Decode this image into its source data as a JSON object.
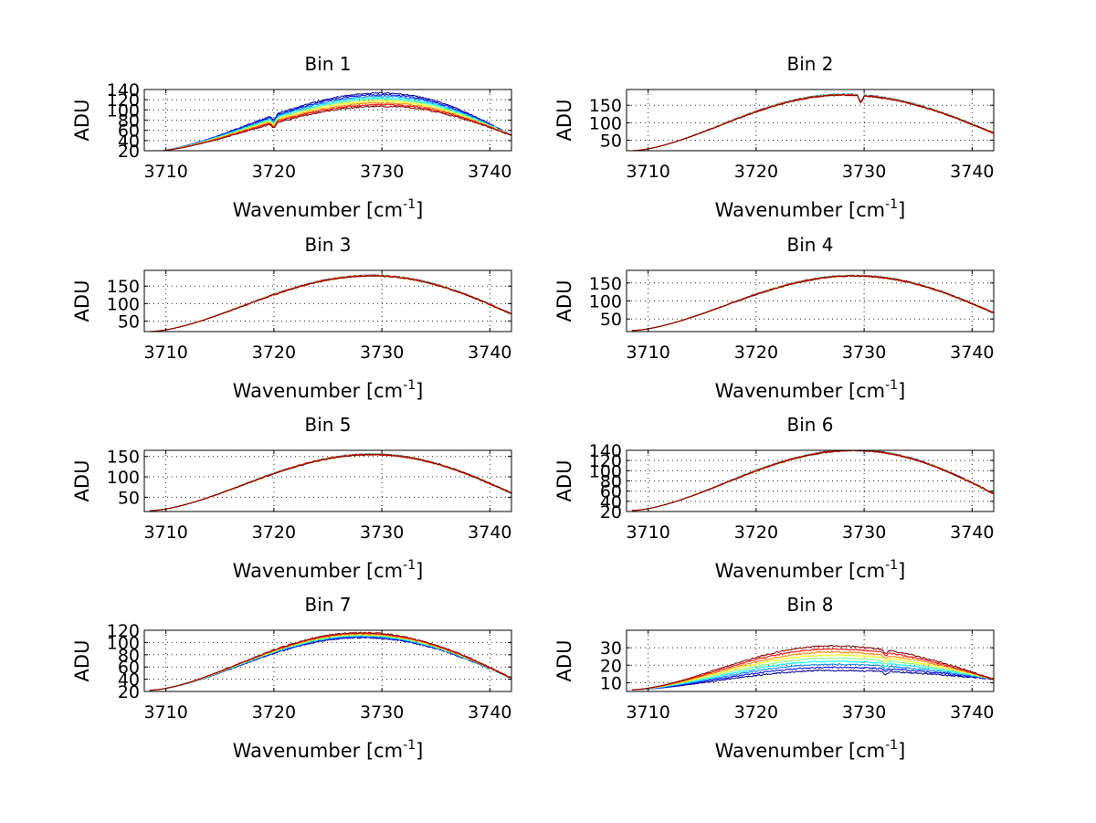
{
  "colors": {
    "series_palette": [
      "#00008f",
      "#0000ff",
      "#0080ff",
      "#00ffff",
      "#80ff80",
      "#ffff00",
      "#ff8000",
      "#ff0000",
      "#800000"
    ],
    "axes": "#000000",
    "background": "#ffffff"
  },
  "chart_data": [
    {
      "type": "line",
      "title": "Bin 1",
      "xlabel": "Wavenumber [cm",
      "xlabel_sup": "-1",
      "xlabel_suffix": "]",
      "ylabel": "ADU",
      "xlim": [
        3708,
        3742
      ],
      "ylim": [
        20,
        140
      ],
      "xticks": [
        3710,
        3720,
        3730,
        3740
      ],
      "yticks": [
        20,
        40,
        60,
        80,
        100,
        120,
        140
      ],
      "grid": true,
      "series_count": 9,
      "profile": {
        "base": 120,
        "spread": 26,
        "edge_left": 18,
        "edge_right": 50,
        "peak_x": 3730,
        "dip_x": 3720,
        "dip_depth": 10
      }
    },
    {
      "type": "line",
      "title": "Bin 2",
      "xlabel": "Wavenumber [cm",
      "xlabel_sup": "-1",
      "xlabel_suffix": "]",
      "ylabel": "ADU",
      "xlim": [
        3708,
        3742
      ],
      "ylim": [
        20,
        195
      ],
      "xticks": [
        3710,
        3720,
        3730,
        3740
      ],
      "yticks": [
        50,
        100,
        150
      ],
      "grid": true,
      "series_count": 9,
      "profile": {
        "base": 180,
        "spread": 2,
        "edge_left": 20,
        "edge_right": 70,
        "peak_x": 3728,
        "dip_x": 3729.7,
        "dip_depth": 20
      }
    },
    {
      "type": "line",
      "title": "Bin 3",
      "xlabel": "Wavenumber [cm",
      "xlabel_sup": "-1",
      "xlabel_suffix": "]",
      "ylabel": "ADU",
      "xlim": [
        3708,
        3742
      ],
      "ylim": [
        20,
        195
      ],
      "xticks": [
        3710,
        3720,
        3730,
        3740
      ],
      "yticks": [
        50,
        100,
        150
      ],
      "grid": true,
      "series_count": 9,
      "profile": {
        "base": 180,
        "spread": 1,
        "edge_left": 20,
        "edge_right": 70,
        "peak_x": 3729,
        "dip_x": 0,
        "dip_depth": 0
      }
    },
    {
      "type": "line",
      "title": "Bin 4",
      "xlabel": "Wavenumber [cm",
      "xlabel_sup": "-1",
      "xlabel_suffix": "]",
      "ylabel": "ADU",
      "xlim": [
        3708,
        3742
      ],
      "ylim": [
        15,
        185
      ],
      "xticks": [
        3710,
        3720,
        3730,
        3740
      ],
      "yticks": [
        50,
        100,
        150
      ],
      "grid": true,
      "series_count": 9,
      "profile": {
        "base": 170,
        "spread": 1,
        "edge_left": 18,
        "edge_right": 67,
        "peak_x": 3729,
        "dip_x": 0,
        "dip_depth": 0
      }
    },
    {
      "type": "line",
      "title": "Bin 5",
      "xlabel": "Wavenumber [cm",
      "xlabel_sup": "-1",
      "xlabel_suffix": "]",
      "ylabel": "ADU",
      "xlim": [
        3708,
        3742
      ],
      "ylim": [
        15,
        165
      ],
      "xticks": [
        3710,
        3720,
        3730,
        3740
      ],
      "yticks": [
        50,
        100,
        150
      ],
      "grid": true,
      "series_count": 9,
      "profile": {
        "base": 155,
        "spread": 1,
        "edge_left": 17,
        "edge_right": 60,
        "peak_x": 3729,
        "dip_x": 0,
        "dip_depth": 0
      }
    },
    {
      "type": "line",
      "title": "Bin 6",
      "xlabel": "Wavenumber [cm",
      "xlabel_sup": "-1",
      "xlabel_suffix": "]",
      "ylabel": "ADU",
      "xlim": [
        3708,
        3742
      ],
      "ylim": [
        20,
        140
      ],
      "xticks": [
        3710,
        3720,
        3730,
        3740
      ],
      "yticks": [
        20,
        40,
        60,
        80,
        100,
        120,
        140
      ],
      "grid": true,
      "series_count": 9,
      "profile": {
        "base": 140,
        "spread": 1,
        "edge_left": 22,
        "edge_right": 55,
        "peak_x": 3729,
        "dip_x": 0,
        "dip_depth": 0
      }
    },
    {
      "type": "line",
      "title": "Bin 7",
      "xlabel": "Wavenumber [cm",
      "xlabel_sup": "-1",
      "xlabel_suffix": "]",
      "ylabel": "ADU",
      "xlim": [
        3708,
        3742
      ],
      "ylim": [
        20,
        120
      ],
      "xticks": [
        3710,
        3720,
        3730,
        3740
      ],
      "yticks": [
        20,
        40,
        60,
        80,
        100,
        120
      ],
      "grid": true,
      "series_count": 9,
      "profile": {
        "base": 112,
        "spread": -8,
        "edge_left": 22,
        "edge_right": 42,
        "peak_x": 3728,
        "dip_x": 0,
        "dip_depth": 0
      }
    },
    {
      "type": "line",
      "title": "Bin 8",
      "xlabel": "Wavenumber [cm",
      "xlabel_sup": "-1",
      "xlabel_suffix": "]",
      "ylabel": "ADU",
      "xlim": [
        3708,
        3742
      ],
      "ylim": [
        5,
        40
      ],
      "xticks": [
        3710,
        3720,
        3730,
        3740
      ],
      "yticks": [
        10,
        20,
        30
      ],
      "grid": true,
      "series_count": 9,
      "profile": {
        "base": 24,
        "spread": -14,
        "edge_left": 6,
        "edge_right": 12,
        "peak_x": 3727,
        "dip_x": 3732,
        "dip_depth": 2
      }
    }
  ]
}
